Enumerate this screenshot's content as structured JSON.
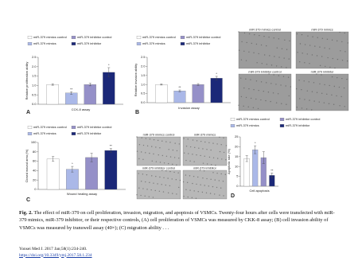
{
  "chart_data": [
    {
      "type": "bar",
      "panel": "A",
      "ylabel": "Relative proliferation ability",
      "xlabel": "CCK-8 assay",
      "ylim": [
        0,
        2.5
      ],
      "yticks": [
        {
          "value": 0,
          "label": "0.0"
        },
        {
          "value": 0.5,
          "label": "0.5"
        },
        {
          "value": 1,
          "label": "1.0"
        },
        {
          "value": 1.5,
          "label": "1.5"
        },
        {
          "value": 2,
          "label": "2.0"
        },
        {
          "value": 2.5,
          "label": "2.5"
        }
      ],
      "series": [
        {
          "name": "miR-379 mimics control",
          "color": "#ffffff",
          "values": [
            1.05
          ],
          "errors": [
            0.04
          ]
        },
        {
          "name": "miR-379 mimics",
          "color": "#aab8e8",
          "values": [
            0.6
          ],
          "errors": [
            0.07
          ],
          "annotation": "**"
        },
        {
          "name": "miR-379 inhibitor control",
          "color": "#9590c8",
          "values": [
            1.05
          ],
          "errors": [
            0.07
          ]
        },
        {
          "name": "miR-379 inhibitor",
          "color": "#1b2878",
          "values": [
            1.7
          ],
          "errors": [
            0.25
          ],
          "annotation": "*"
        }
      ]
    },
    {
      "type": "bar",
      "panel": "B",
      "ylabel": "Relative invasion ability",
      "xlabel": "Invasion assay",
      "ylim": [
        0,
        2.5
      ],
      "yticks": [
        {
          "value": 0,
          "label": "0.0"
        },
        {
          "value": 0.5,
          "label": "0.5"
        },
        {
          "value": 1,
          "label": "1.0"
        },
        {
          "value": 1.5,
          "label": "1.5"
        },
        {
          "value": 2,
          "label": "2.0"
        },
        {
          "value": 2.5,
          "label": "2.5"
        }
      ],
      "series": [
        {
          "name": "miR-379 mimics control",
          "color": "#ffffff",
          "values": [
            1.0
          ],
          "errors": [
            0.03
          ]
        },
        {
          "name": "miR-379 mimics",
          "color": "#aab8e8",
          "values": [
            0.65
          ],
          "errors": [
            0.05
          ],
          "annotation": "**"
        },
        {
          "name": "miR-379 inhibitor control",
          "color": "#9590c8",
          "values": [
            1.0
          ],
          "errors": [
            0.05
          ]
        },
        {
          "name": "miR-379 inhibitor",
          "color": "#1b2878",
          "values": [
            1.35
          ],
          "errors": [
            0.1
          ],
          "annotation": "*"
        }
      ]
    },
    {
      "type": "bar",
      "panel": "C",
      "ylabel": "Closed wound area (%)",
      "xlabel": "Wound healing assay",
      "ylim": [
        0,
        100
      ],
      "yticks": [
        0,
        20,
        40,
        60,
        80,
        100
      ],
      "series": [
        {
          "name": "miR-379 mimics control",
          "color": "#ffffff",
          "values": [
            65
          ],
          "errors": [
            5
          ]
        },
        {
          "name": "miR-379 mimics",
          "color": "#aab8e8",
          "values": [
            43
          ],
          "errors": [
            6
          ],
          "annotation": "*"
        },
        {
          "name": "miR-379 inhibitor control",
          "color": "#9590c8",
          "values": [
            68
          ],
          "errors": [
            9
          ]
        },
        {
          "name": "miR-379 inhibitor",
          "color": "#1b2878",
          "values": [
            83
          ],
          "errors": [
            4
          ],
          "annotation": "**"
        }
      ]
    },
    {
      "type": "bar",
      "panel": "D",
      "ylabel": "Apoptotic rate (%)",
      "xlabel": "Cell apoptosis",
      "ylim": [
        0,
        25
      ],
      "yticks": [
        0,
        5,
        10,
        15,
        20,
        25
      ],
      "series": [
        {
          "name": "miR-379 mimics control",
          "color": "#ffffff",
          "values": [
            14
          ],
          "errors": [
            1.5
          ]
        },
        {
          "name": "miR-379 mimics",
          "color": "#aab8e8",
          "values": [
            18.5
          ],
          "errors": [
            2
          ],
          "annotation": "*"
        },
        {
          "name": "miR-379 inhibitor control",
          "color": "#9590c8",
          "values": [
            14.5
          ],
          "errors": [
            3
          ]
        },
        {
          "name": "miR-379 inhibitor",
          "color": "#1b2878",
          "values": [
            5.5
          ],
          "errors": [
            1.2
          ],
          "annotation": "**"
        }
      ]
    }
  ],
  "image_panels": [
    {
      "labels": [
        "miR-379 mimics control",
        "miR-379 mimics",
        "miR-379 inhibitor control",
        "miR-379 inhibitor"
      ]
    },
    {
      "labels": [
        "miR-379 mimics control",
        "miR-379 mimics",
        "miR-379 inhibitor control",
        "miR-379 inhibitor"
      ]
    }
  ],
  "caption": {
    "label": "Fig. 2.",
    "text": "The effect of miR-379 on cell proliferation, invasion, migration, and apoptosis of VSMCs. Twenty-four hours after cells were transfected with miR-379 mimics, miR-379 inhibitor, or their respective controls, (A) cell proliferation of VSMCs was measured by CKK-8 assay; (B) cell invasion ability of VSMCs was measured by transwell assay (40×); (C) migration ability . . ."
  },
  "source": {
    "citation": "Yonsei Med J. 2017 Jan;58(1):234-240.",
    "doi": "https://doi.org/10.3349/ymj.2017.58.1.234"
  }
}
